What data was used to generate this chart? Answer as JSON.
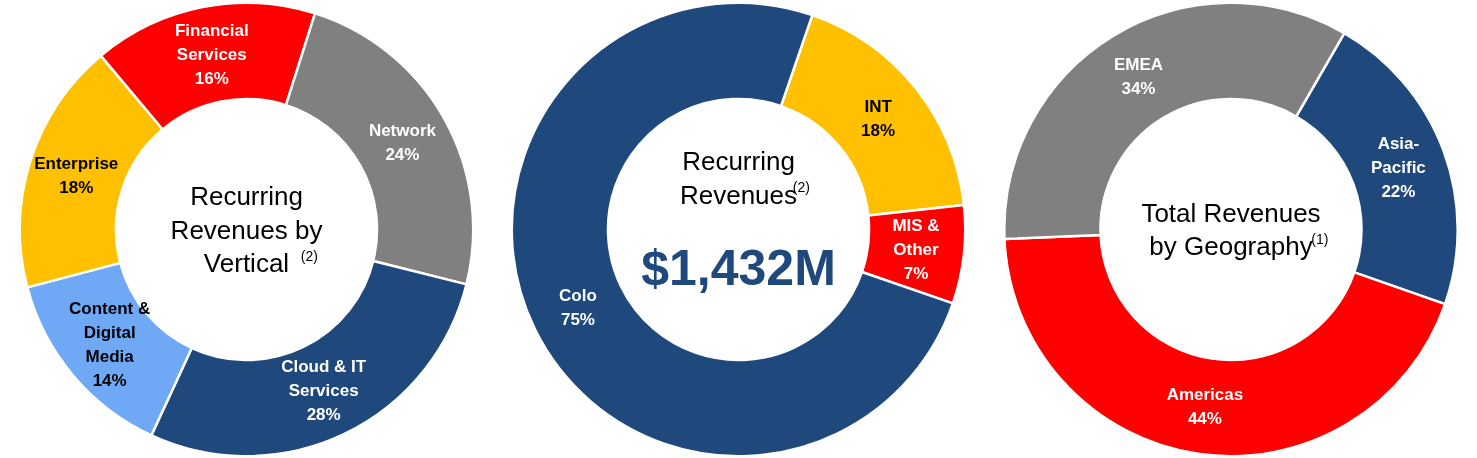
{
  "chart_data": [
    {
      "type": "donut",
      "title": "Recurring Revenues by Vertical$^{(2)}$",
      "categories": [
        "Financial Services",
        "Network",
        "Cloud & IT Services",
        "Content & Digital Media",
        "Enterprise"
      ],
      "values": [
        16,
        24,
        28,
        14,
        18
      ],
      "colors": [
        "#ff0000",
        "#808080",
        "#1f497d",
        "#6fa8f5",
        "#ffc000"
      ],
      "value_labels": [
        "16%",
        "24%",
        "28%",
        "14%",
        "18%"
      ]
    },
    {
      "type": "donut",
      "title": "Recurring Revenues$^{(2)}$",
      "subtitle": "$1,432M",
      "categories": [
        "INT",
        "MIS & Other",
        "Colo"
      ],
      "values": [
        18,
        7,
        75
      ],
      "colors": [
        "#ffc000",
        "#ff0000",
        "#1f497d"
      ],
      "value_labels": [
        "18%",
        "7%",
        "75%"
      ]
    },
    {
      "type": "donut",
      "title": "Total Revenues by Geography$^{(1)}$",
      "categories": [
        "Asia-Pacific",
        "Americas",
        "EMEA"
      ],
      "values": [
        22,
        44,
        34
      ],
      "colors": [
        "#1f497d",
        "#ff0000",
        "#808080"
      ],
      "value_labels": [
        "22%",
        "44%",
        "34%"
      ]
    }
  ]
}
